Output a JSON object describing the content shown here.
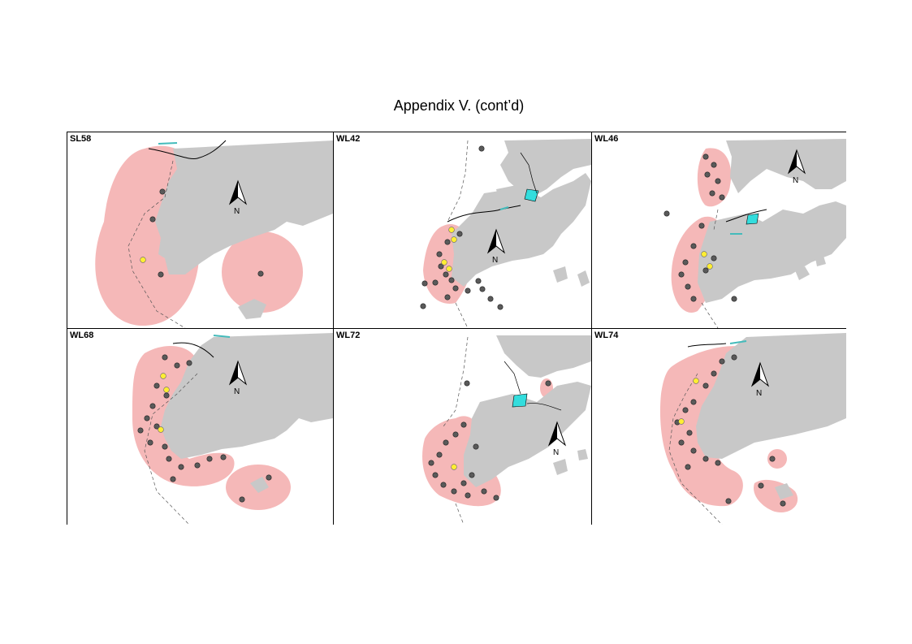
{
  "page": {
    "title": "Appendix V.  (cont’d)"
  },
  "legend_colors": {
    "land": "#c8c8c8",
    "range": "#f5b8b8",
    "sighting": "#5a5a5a",
    "highlight": "#ffee33",
    "reclamation": "#33dddd"
  },
  "north_arrow": {
    "label": "N",
    "icon": "north-arrow-icon"
  },
  "panels": [
    {
      "id": "SL58",
      "label": "SL58"
    },
    {
      "id": "WL42",
      "label": "WL42"
    },
    {
      "id": "WL46",
      "label": "WL46"
    },
    {
      "id": "WL68",
      "label": "WL68"
    },
    {
      "id": "WL72",
      "label": "WL72"
    },
    {
      "id": "WL74",
      "label": "WL74"
    }
  ]
}
